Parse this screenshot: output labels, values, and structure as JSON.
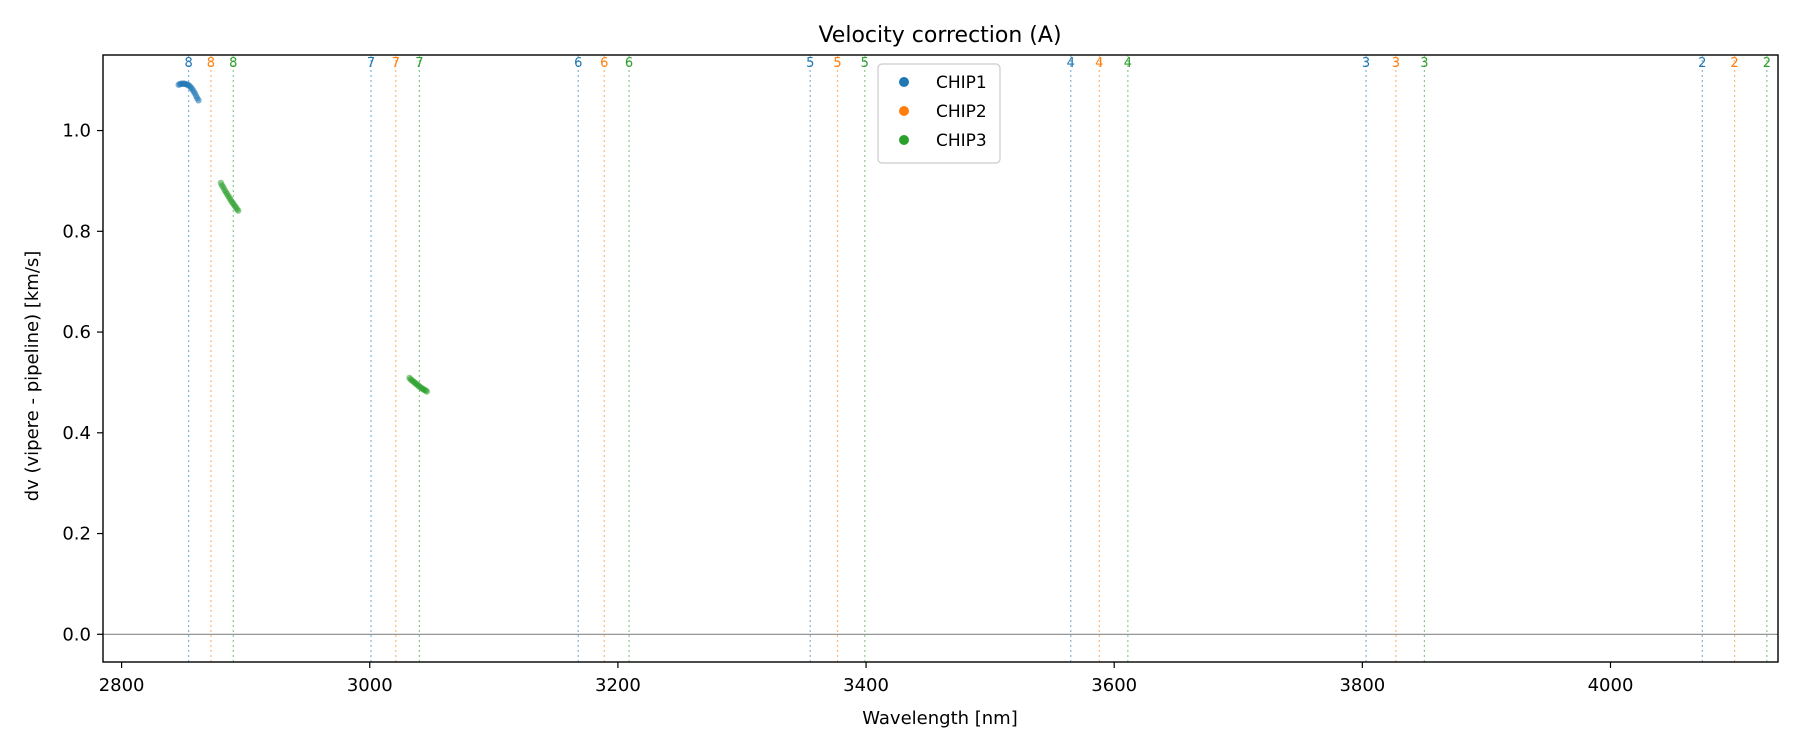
{
  "chart_data": {
    "type": "scatter",
    "title": "Velocity correction (A)",
    "xlabel": "Wavelength [nm]",
    "ylabel": "dv (vipere - pipeline) [km/s]",
    "xlim": [
      2785,
      4135
    ],
    "ylim": [
      -0.055,
      1.15
    ],
    "xticks": [
      2800,
      3000,
      3200,
      3400,
      3600,
      3800,
      4000
    ],
    "xtick_labels": [
      "2800",
      "3000",
      "3200",
      "3400",
      "3600",
      "3800",
      "4000"
    ],
    "yticks": [
      0.0,
      0.2,
      0.4,
      0.6,
      0.8,
      1.0
    ],
    "ytick_labels": [
      "0.0",
      "0.2",
      "0.4",
      "0.6",
      "0.8",
      "1.0"
    ],
    "zero_line": 0.0,
    "legend": {
      "position": "upper-center",
      "entries": [
        {
          "name": "CHIP1",
          "color": "#1f77b4"
        },
        {
          "name": "CHIP2",
          "color": "#ff7f0e"
        },
        {
          "name": "CHIP3",
          "color": "#2ca02c"
        }
      ]
    },
    "order_markers": [
      {
        "x": 2854,
        "label": "8",
        "chip": "CHIP1"
      },
      {
        "x": 2872,
        "label": "8",
        "chip": "CHIP2"
      },
      {
        "x": 2890,
        "label": "8",
        "chip": "CHIP3"
      },
      {
        "x": 3001,
        "label": "7",
        "chip": "CHIP1"
      },
      {
        "x": 3021,
        "label": "7",
        "chip": "CHIP2"
      },
      {
        "x": 3040,
        "label": "7",
        "chip": "CHIP3"
      },
      {
        "x": 3168,
        "label": "6",
        "chip": "CHIP1"
      },
      {
        "x": 3189,
        "label": "6",
        "chip": "CHIP2"
      },
      {
        "x": 3209,
        "label": "6",
        "chip": "CHIP3"
      },
      {
        "x": 3355,
        "label": "5",
        "chip": "CHIP1"
      },
      {
        "x": 3377,
        "label": "5",
        "chip": "CHIP2"
      },
      {
        "x": 3399,
        "label": "5",
        "chip": "CHIP3"
      },
      {
        "x": 3565,
        "label": "4",
        "chip": "CHIP1"
      },
      {
        "x": 3588,
        "label": "4",
        "chip": "CHIP2"
      },
      {
        "x": 3611,
        "label": "4",
        "chip": "CHIP3"
      },
      {
        "x": 3803,
        "label": "3",
        "chip": "CHIP1"
      },
      {
        "x": 3827,
        "label": "3",
        "chip": "CHIP2"
      },
      {
        "x": 3850,
        "label": "3",
        "chip": "CHIP3"
      },
      {
        "x": 4074,
        "label": "2",
        "chip": "CHIP1"
      },
      {
        "x": 4100,
        "label": "2",
        "chip": "CHIP2"
      },
      {
        "x": 4126,
        "label": "2",
        "chip": "CHIP3"
      }
    ],
    "series": [
      {
        "name": "CHIP1",
        "color": "#1f77b4",
        "points": [
          [
            2846,
            1.091
          ],
          [
            2847,
            1.092
          ],
          [
            2848,
            1.093
          ],
          [
            2849,
            1.093
          ],
          [
            2850,
            1.093
          ],
          [
            2851,
            1.093
          ],
          [
            2852,
            1.092
          ],
          [
            2853,
            1.091
          ],
          [
            2854,
            1.09
          ],
          [
            2855,
            1.088
          ],
          [
            2856,
            1.085
          ],
          [
            2857,
            1.082
          ],
          [
            2858,
            1.078
          ],
          [
            2859,
            1.074
          ],
          [
            2860,
            1.069
          ],
          [
            2861,
            1.064
          ],
          [
            2862,
            1.06
          ]
        ]
      },
      {
        "name": "CHIP3",
        "color": "#2ca02c",
        "points": [
          [
            2880,
            0.896
          ],
          [
            2881,
            0.891
          ],
          [
            2882,
            0.887
          ],
          [
            2883,
            0.882
          ],
          [
            2884,
            0.878
          ],
          [
            2885,
            0.874
          ],
          [
            2886,
            0.87
          ],
          [
            2887,
            0.866
          ],
          [
            2888,
            0.862
          ],
          [
            2889,
            0.858
          ],
          [
            2890,
            0.855
          ],
          [
            2891,
            0.851
          ],
          [
            2892,
            0.848
          ],
          [
            2893,
            0.844
          ],
          [
            2894,
            0.841
          ],
          [
            3032,
            0.509
          ],
          [
            3033,
            0.506
          ],
          [
            3034,
            0.504
          ],
          [
            3035,
            0.502
          ],
          [
            3036,
            0.5
          ],
          [
            3037,
            0.498
          ],
          [
            3038,
            0.496
          ],
          [
            3039,
            0.494
          ],
          [
            3040,
            0.492
          ],
          [
            3041,
            0.49
          ],
          [
            3042,
            0.488
          ],
          [
            3043,
            0.487
          ],
          [
            3044,
            0.485
          ],
          [
            3045,
            0.484
          ],
          [
            3046,
            0.482
          ]
        ]
      }
    ]
  }
}
